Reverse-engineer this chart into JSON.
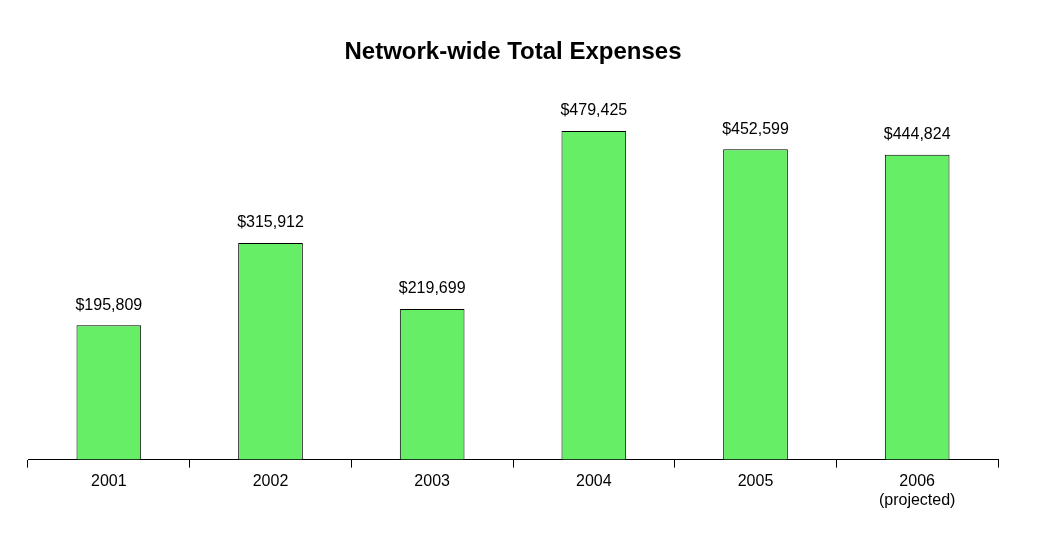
{
  "chart_data": {
    "type": "bar",
    "title": "Network-wide Total Expenses",
    "categories": [
      "2001",
      "2002",
      "2003",
      "2004",
      "2005",
      "2006\n(projected)"
    ],
    "values": [
      195809,
      315912,
      219699,
      479425,
      452599,
      444824
    ],
    "value_labels": [
      "$195,809",
      "$315,912",
      "$219,699",
      "$479,425",
      "$452,599",
      "$444,824"
    ],
    "color": "#66ee66",
    "tick_labels": "x",
    "grid": false,
    "legend": false
  }
}
